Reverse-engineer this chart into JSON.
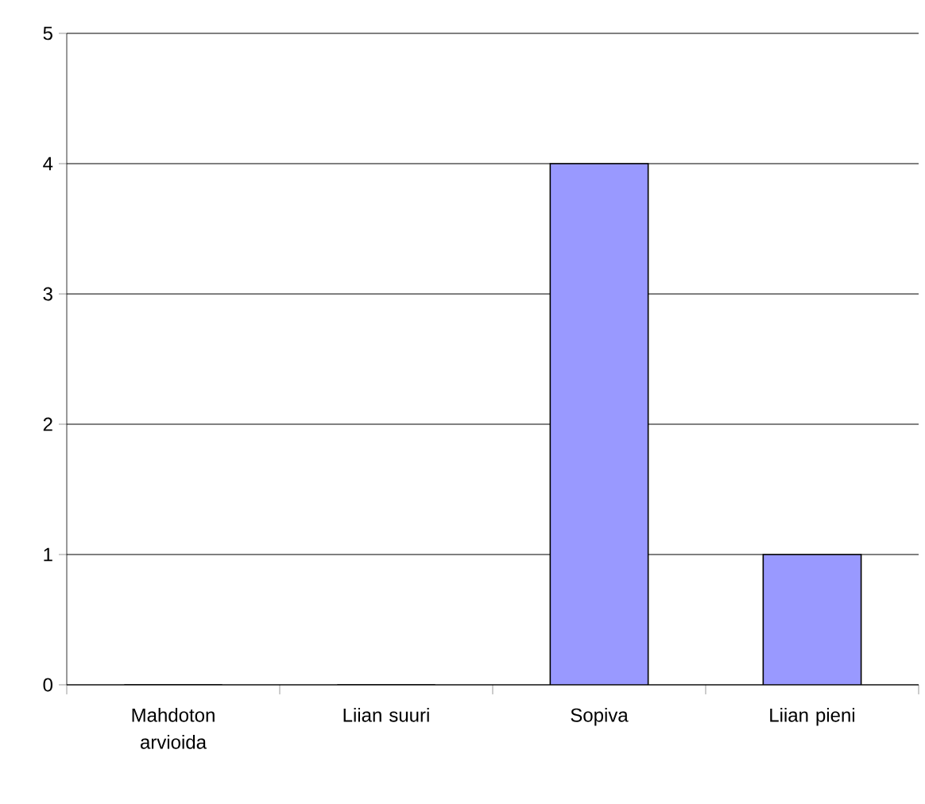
{
  "chart_data": {
    "type": "bar",
    "categories": [
      "Mahdoton arvioida",
      "Liian suuri",
      "Sopiva",
      "Liian pieni"
    ],
    "values": [
      0,
      0,
      4,
      1
    ],
    "color": "#9999ff",
    "ylim": [
      0,
      5
    ],
    "yticks": [
      0,
      1,
      2,
      3,
      4,
      5
    ],
    "grid": "y"
  }
}
